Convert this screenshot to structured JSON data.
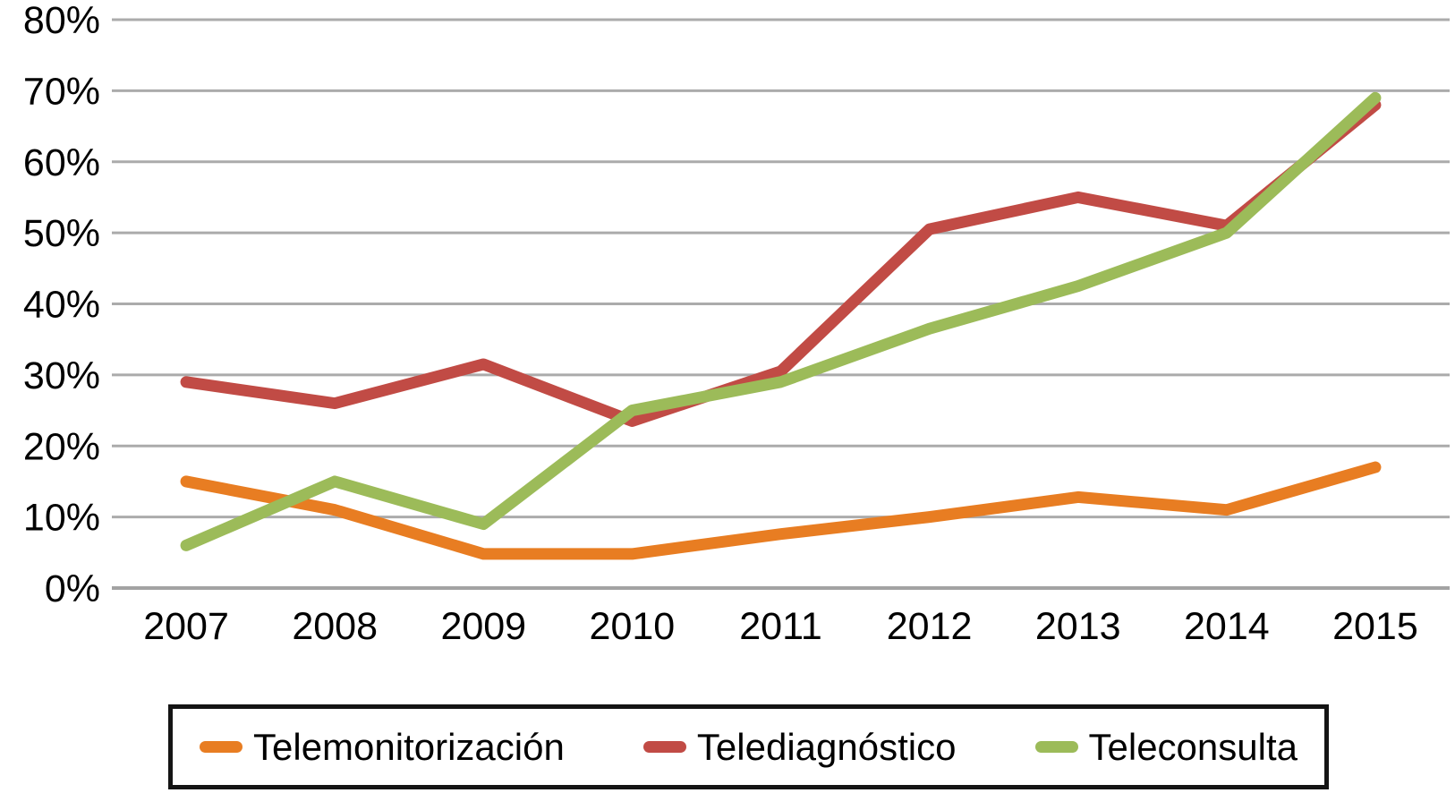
{
  "chart_data": {
    "type": "line",
    "title": "",
    "xlabel": "",
    "ylabel": "",
    "x_categories": [
      "2007",
      "2008",
      "2009",
      "2010",
      "2011",
      "2012",
      "2013",
      "2014",
      "2015"
    ],
    "y_tick_labels": [
      "0%",
      "10%",
      "20%",
      "30%",
      "40%",
      "50%",
      "60%",
      "70%",
      "80%"
    ],
    "y_tick_values": [
      0,
      10,
      20,
      30,
      40,
      50,
      60,
      70,
      80
    ],
    "ylim": [
      0,
      80
    ],
    "grid": true,
    "gridline_orientation": "horizontal",
    "legend_position": "bottom",
    "legend_border": true,
    "series": [
      {
        "name": "Telemonitorización",
        "color": "#E87D22",
        "values": [
          15,
          11,
          4.8,
          4.8,
          7.6,
          10,
          12.8,
          11,
          17
        ]
      },
      {
        "name": "Telediagnóstico",
        "color": "#C14B45",
        "values": [
          29,
          26,
          31.5,
          23.5,
          30.5,
          50.5,
          55,
          51,
          68
        ]
      },
      {
        "name": "Teleconsulta",
        "color": "#9CBB59",
        "values": [
          6,
          15,
          9,
          25,
          29,
          36.5,
          42.5,
          50,
          69
        ]
      }
    ],
    "colors": {
      "background": "#FFFFFF",
      "gridline": "#ABABAB",
      "axis_line": "#A3A3A3",
      "text": "#000000",
      "legend_border": "#141414"
    }
  }
}
